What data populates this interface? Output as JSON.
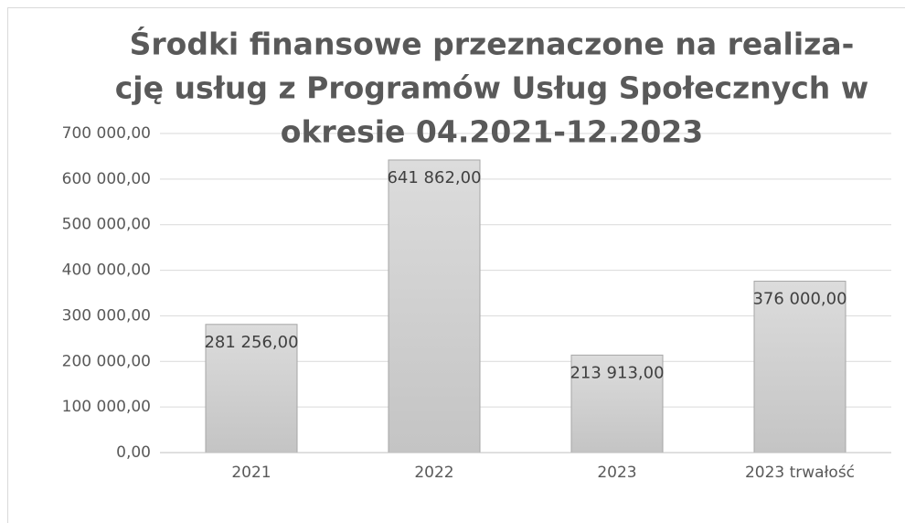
{
  "chart_data": {
    "type": "bar",
    "title": [
      "Środki finansowe przeznaczone na realiza-",
      "cję usług z Programów Usług Społecznych w",
      "okresie 04.2021-12.2023"
    ],
    "categories": [
      "2021",
      "2022",
      "2023",
      "2023 trwałość"
    ],
    "values": [
      281256,
      641862,
      213913,
      376000
    ],
    "value_labels": [
      "281 256,00",
      "641 862,00",
      "213 913,00",
      "376 000,00"
    ],
    "color": "#d0d0d0",
    "ylim": [
      0,
      700000
    ],
    "yticks": [
      {
        "value": 0,
        "label": "0,00"
      },
      {
        "value": 100000,
        "label": "100 000,00"
      },
      {
        "value": 200000,
        "label": "200 000,00"
      },
      {
        "value": 300000,
        "label": "300 000,00"
      },
      {
        "value": 400000,
        "label": "400 000,00"
      },
      {
        "value": 500000,
        "label": "500 000,00"
      },
      {
        "value": 600000,
        "label": "600 000,00"
      },
      {
        "value": 700000,
        "label": "700 000,00"
      }
    ],
    "grid": true
  }
}
